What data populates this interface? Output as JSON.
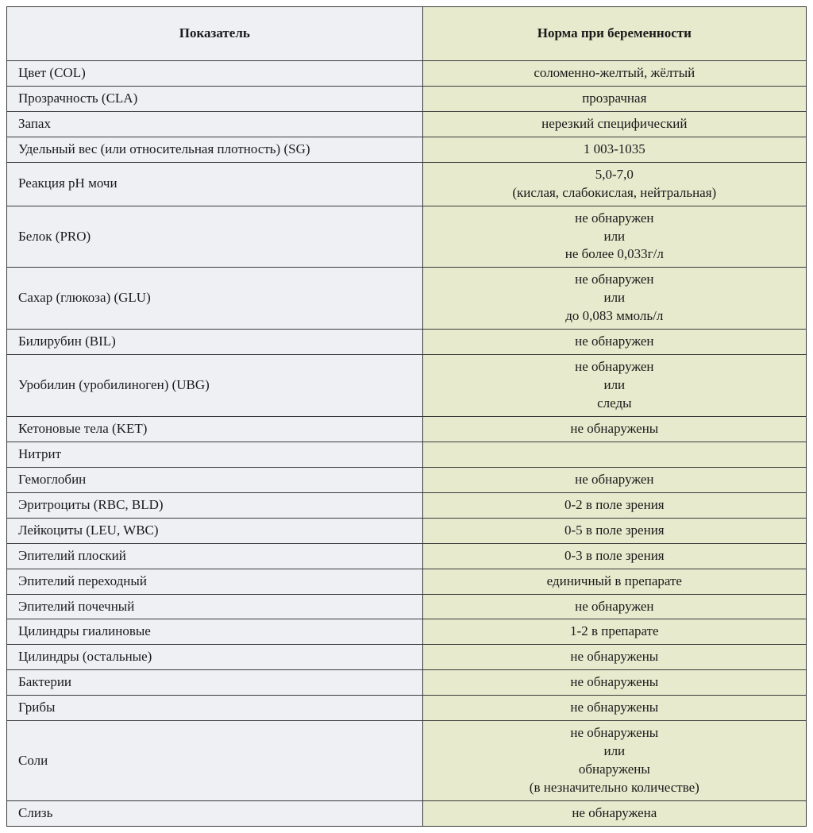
{
  "table": {
    "header_param": "Показатель",
    "header_norm": "Норма при беременности",
    "col_widths": [
      "52%",
      "48%"
    ],
    "colors": {
      "param_bg": "#eef0f4",
      "norm_bg": "#e7eacd",
      "border": "#3a3a3a",
      "text": "#1a1a1a"
    },
    "rows": [
      {
        "param": "Цвет (COL)",
        "norm": "соломенно-желтый, жёлтый"
      },
      {
        "param": "Прозрачность (CLA)",
        "norm": "прозрачная"
      },
      {
        "param": "Запах",
        "norm": "нерезкий специфический"
      },
      {
        "param": "Удельный вес (или относительная плотность) (SG)",
        "norm": "1 003-1035"
      },
      {
        "param": "Реакция pH мочи",
        "norm": "5,0-7,0\n(кислая, слабокислая, нейтральная)"
      },
      {
        "param": "Белок (PRO)",
        "norm": "не обнаружен\nили\nне более 0,033г/л"
      },
      {
        "param": "Сахар (глюкоза) (GLU)",
        "norm": "не обнаружен\nили\nдо 0,083 ммоль/л"
      },
      {
        "param": "Билирубин (BIL)",
        "norm": "не обнаружен"
      },
      {
        "param": "Уробилин (уробилиноген) (UBG)",
        "norm": "не обнаружен\nили\nследы"
      },
      {
        "param": "Кетоновые тела (KET)",
        "norm": "не обнаружены"
      },
      {
        "param": "Нитрит",
        "norm": ""
      },
      {
        "param": "Гемоглобин",
        "norm": "не обнаружен"
      },
      {
        "param": "Эритроциты (RBC, BLD)",
        "norm": "0-2 в поле зрения"
      },
      {
        "param": "Лейкоциты (LEU, WBC)",
        "norm": "0-5 в поле зрения"
      },
      {
        "param": "Эпителий плоский",
        "norm": "0-3 в поле зрения"
      },
      {
        "param": "Эпителий переходный",
        "norm": "единичный в препарате"
      },
      {
        "param": "Эпителий почечный",
        "norm": "не обнаружен"
      },
      {
        "param": "Цилиндры гиалиновые",
        "norm": "1-2 в препарате"
      },
      {
        "param": "Цилиндры (остальные)",
        "norm": "не обнаружены"
      },
      {
        "param": "Бактерии",
        "norm": "не обнаружены"
      },
      {
        "param": "Грибы",
        "norm": "не обнаружены"
      },
      {
        "param": "Соли",
        "norm": "не обнаружены\nили\nобнаружены\n(в незначительно количестве)"
      },
      {
        "param": "Слизь",
        "norm": "не обнаружена"
      }
    ]
  }
}
